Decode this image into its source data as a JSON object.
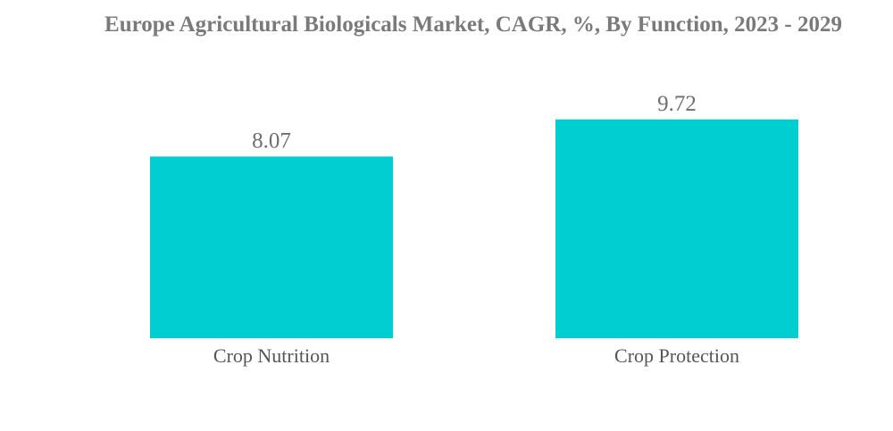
{
  "chart_data": {
    "type": "bar",
    "title": "Europe Agricultural Biologicals Market, CAGR, %, By Function, 2023 - 2029",
    "categories": [
      "Crop Nutrition",
      "Crop Protection"
    ],
    "values": [
      8.07,
      9.72
    ],
    "value_labels": [
      "8.07",
      "9.72"
    ],
    "xlabel": "",
    "ylabel": "",
    "ylim": [
      0,
      10.9
    ],
    "grid": false,
    "legend": "none",
    "bar_color": "#00CED1"
  }
}
